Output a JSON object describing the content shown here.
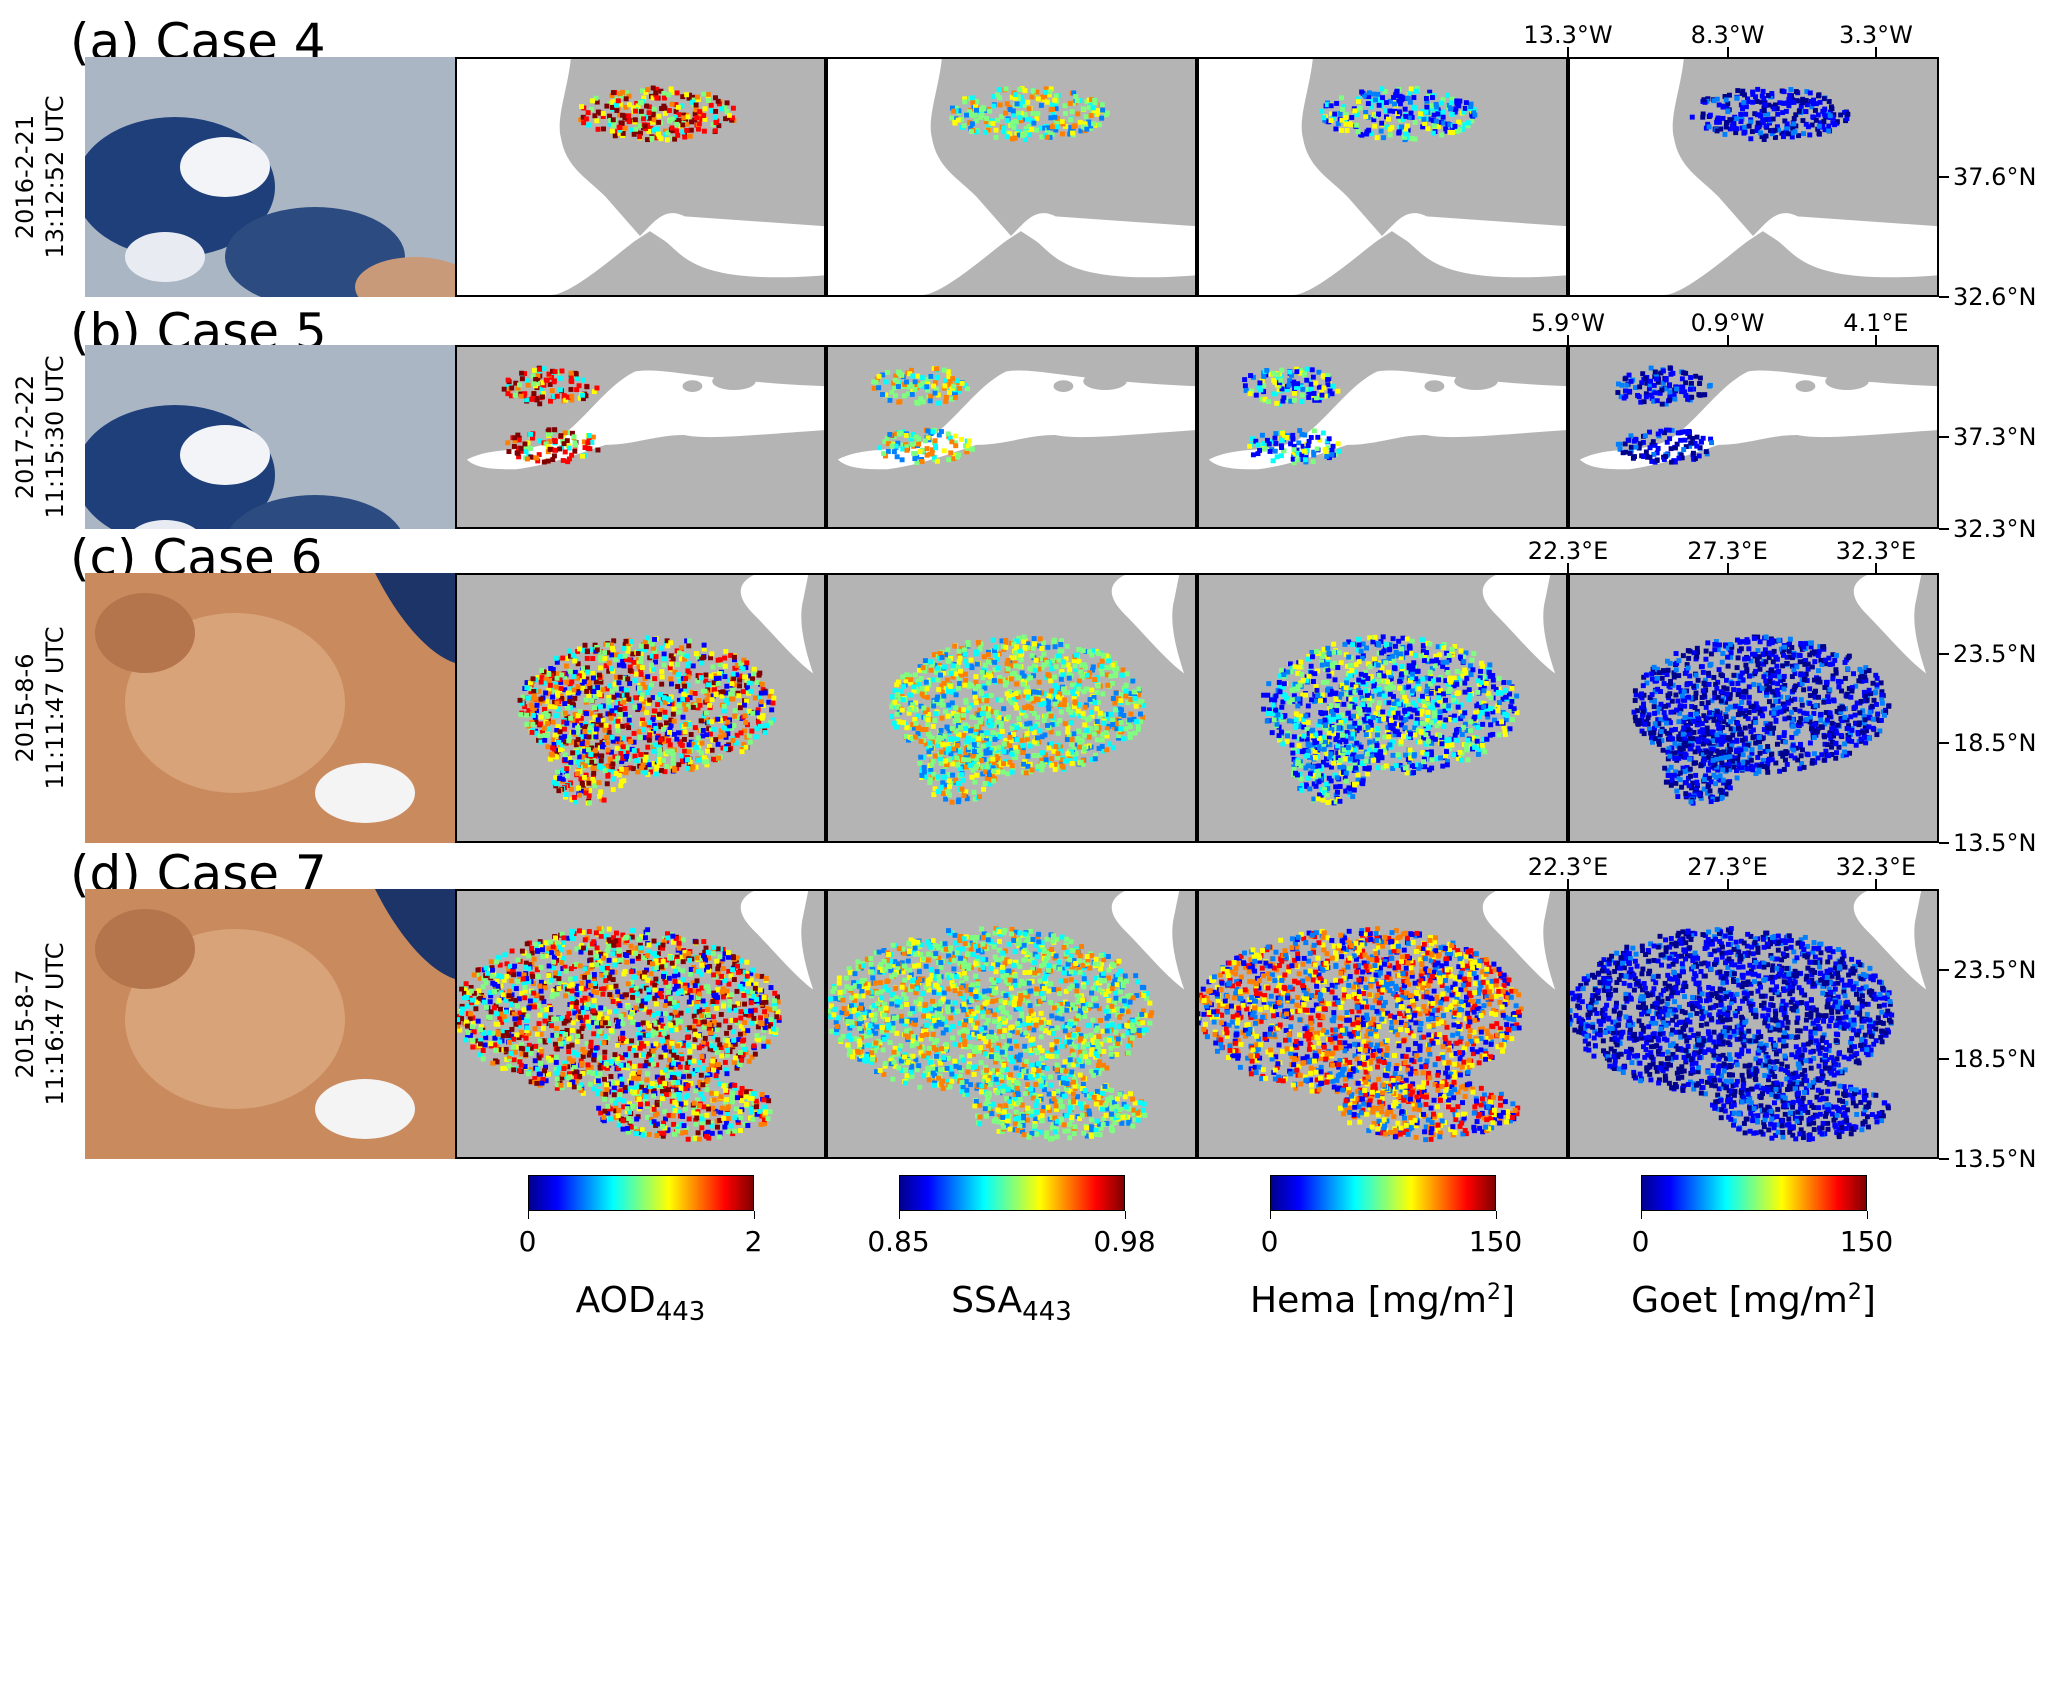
{
  "rows": [
    {
      "title": "(a) Case 4",
      "date": "2016-2-21",
      "time": "13:12:52 UTC",
      "lon_ticks": [
        "13.3°W",
        "8.3°W",
        "3.3°W"
      ],
      "lat_ticks": [
        "37.6°N",
        "32.6°N"
      ],
      "scene": "iberia-2016"
    },
    {
      "title": "(b) Case 5",
      "date": "2017-2-22",
      "time": "11:15:30 UTC",
      "lon_ticks": [
        "5.9°W",
        "0.9°W",
        "4.1°E"
      ],
      "lat_ticks": [
        "37.3°N",
        "32.3°N"
      ],
      "scene": "mediterranean-2017"
    },
    {
      "title": "(c) Case 6",
      "date": "2015-8-6",
      "time": "11:11:47 UTC",
      "lon_ticks": [
        "22.3°E",
        "27.3°E",
        "32.3°E"
      ],
      "lat_ticks": [
        "23.5°N",
        "18.5°N",
        "13.5°N"
      ],
      "scene": "sahara-2015-08-06"
    },
    {
      "title": "(d) Case 7",
      "date": "2015-8-7",
      "time": "11:16:47 UTC",
      "lon_ticks": [
        "22.3°E",
        "27.3°E",
        "32.3°E"
      ],
      "lat_ticks": [
        "23.5°N",
        "18.5°N",
        "13.5°N"
      ],
      "scene": "sahara-2015-08-07"
    }
  ],
  "colorbars": [
    {
      "label_main": "AOD",
      "label_sub": "443",
      "label_rest": "",
      "label_sup": "",
      "label_end": "",
      "ticks": [
        "0",
        "2"
      ],
      "colormap": "jet"
    },
    {
      "label_main": "SSA",
      "label_sub": "443",
      "label_rest": "",
      "label_sup": "",
      "label_end": "",
      "ticks": [
        "0.85",
        "0.98"
      ],
      "colormap": "jet"
    },
    {
      "label_main": "Hema [mg/m",
      "label_sub": "",
      "label_rest": "",
      "label_sup": "2",
      "label_end": "]",
      "ticks": [
        "0",
        "150"
      ],
      "colormap": "jet"
    },
    {
      "label_main": "Goet [mg/m",
      "label_sub": "",
      "label_rest": "",
      "label_sup": "2",
      "label_end": "]",
      "ticks": [
        "0",
        "150"
      ],
      "colormap": "jet"
    }
  ],
  "colors": {
    "land": "#b4b4b4",
    "water": "#ffffff",
    "frame": "#000000"
  }
}
